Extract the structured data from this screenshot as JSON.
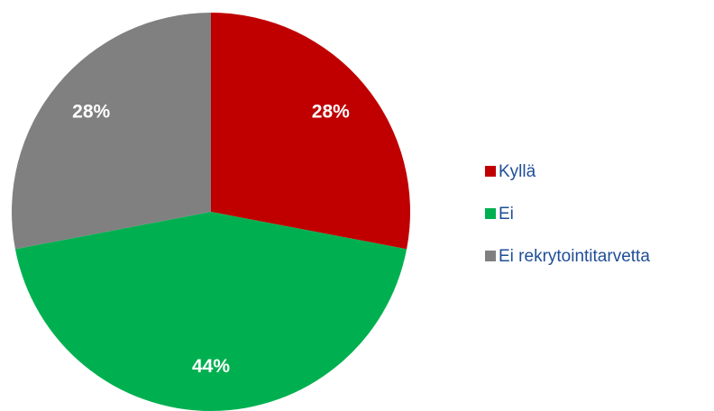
{
  "chart_data": {
    "type": "pie",
    "categories": [
      "Kyllä",
      "Ei",
      "Ei rekrytointitarvetta"
    ],
    "values": [
      28,
      44,
      28
    ],
    "value_labels": [
      "28%",
      "44%",
      "28%"
    ],
    "colors": [
      "#c00000",
      "#00b050",
      "#808080"
    ],
    "legend": "right"
  }
}
